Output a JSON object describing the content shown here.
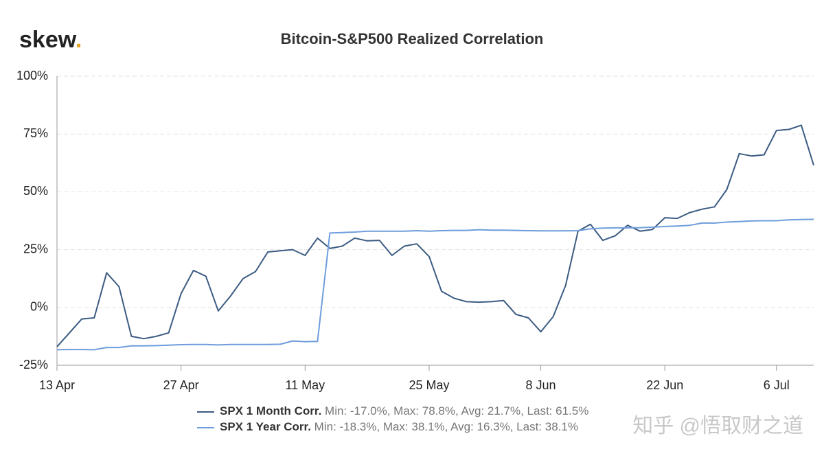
{
  "chart_data": {
    "type": "line",
    "logo": [
      "skew",
      "."
    ],
    "title": "Bitcoin-S&P500 Realized Correlation",
    "categories": [
      "13 Apr",
      null,
      null,
      null,
      null,
      null,
      null,
      null,
      null,
      null,
      "27 Apr",
      null,
      null,
      null,
      null,
      null,
      null,
      null,
      null,
      null,
      "11 May",
      null,
      null,
      null,
      null,
      null,
      null,
      null,
      null,
      null,
      "25 May",
      null,
      null,
      null,
      null,
      null,
      null,
      null,
      null,
      "8 Jun",
      null,
      null,
      null,
      null,
      null,
      null,
      null,
      null,
      null,
      "22 Jun",
      null,
      null,
      null,
      null,
      null,
      null,
      null,
      null,
      "6 Jul",
      null,
      null,
      null
    ],
    "series": [
      {
        "name": "SPX 1 Month Corr.",
        "stats": "Min: -17.0%, Max: 78.8%, Avg: 21.7%, Last: 61.5%",
        "color": "#3b5b82",
        "values": [
          -17,
          -11,
          -5,
          -4.5,
          15,
          9,
          -12.5,
          -13.5,
          -12.5,
          -11,
          6,
          16,
          13.5,
          -1.5,
          5,
          12.5,
          15.5,
          24,
          24.5,
          25,
          22.5,
          30,
          25.5,
          26.5,
          30,
          28.8,
          29,
          22.5,
          26.5,
          27.5,
          22,
          7,
          4,
          2.5,
          2.3,
          2.5,
          3,
          -3,
          -4.5,
          -10.5,
          -4,
          9.5,
          33,
          36,
          29,
          31,
          35.5,
          33,
          33.7,
          38.8,
          38.5,
          41,
          42.5,
          43.5,
          51,
          66.5,
          65.5,
          66,
          76.5,
          77,
          78.8,
          61.5
        ]
      },
      {
        "name": "SPX 1 Year Corr.",
        "stats": "Min: -18.3%, Max: 38.1%, Avg: 16.3%, Last: 38.1%",
        "color": "#6d9ddb",
        "values": [
          -18.3,
          -18.2,
          -18.2,
          -18.3,
          -17.3,
          -17.3,
          -16.6,
          -16.6,
          -16.5,
          -16.3,
          -16.1,
          -16,
          -16,
          -16.2,
          -16,
          -16,
          -16,
          -16,
          -15.9,
          -14.5,
          -14.8,
          -14.7,
          32.2,
          32.4,
          32.6,
          33,
          33,
          33,
          33,
          33.2,
          33,
          33.2,
          33.3,
          33.3,
          33.6,
          33.4,
          33.4,
          33.3,
          33.2,
          33.1,
          33.1,
          33.1,
          33.2,
          34,
          34.3,
          34.4,
          34.4,
          34.5,
          34.7,
          35,
          35.2,
          35.5,
          36.5,
          36.5,
          36.9,
          37.1,
          37.4,
          37.5,
          37.5,
          37.9,
          38,
          38.1
        ]
      }
    ],
    "ylim": [
      -25,
      100
    ],
    "yticks": [
      {
        "value": -25,
        "label": "-25%"
      },
      {
        "value": 0,
        "label": "0%"
      },
      {
        "value": 25,
        "label": "25%"
      },
      {
        "value": 50,
        "label": "50%"
      },
      {
        "value": 75,
        "label": "75%"
      },
      {
        "value": 100,
        "label": "100%"
      }
    ],
    "grid": true,
    "watermark": "知乎 @悟取财之道"
  }
}
